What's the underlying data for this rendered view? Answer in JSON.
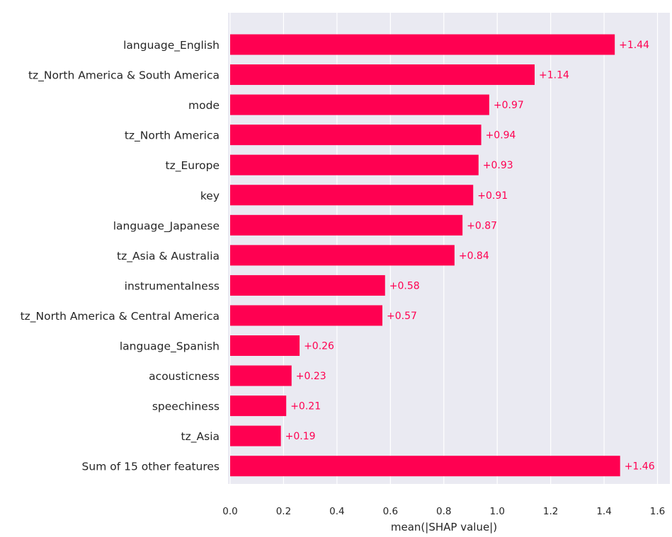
{
  "chart_data": {
    "type": "bar",
    "orientation": "horizontal",
    "title": "",
    "xlabel": "mean(|SHAP value|)",
    "ylabel": "",
    "xlim": [
      0,
      1.6
    ],
    "xticks": [
      0.0,
      0.2,
      0.4,
      0.6,
      0.8,
      1.0,
      1.2,
      1.4,
      1.6
    ],
    "xtick_labels": [
      "0.0",
      "0.2",
      "0.4",
      "0.6",
      "0.8",
      "1.0",
      "1.2",
      "1.4",
      "1.6"
    ],
    "grid": true,
    "bar_color": "#ff0051",
    "background_color": "#eaeaf2",
    "categories": [
      "language_English",
      "tz_North America & South America",
      "mode",
      "tz_North America",
      "tz_Europe",
      "key",
      "language_Japanese",
      "tz_Asia & Australia",
      "instrumentalness",
      "tz_North America & Central America",
      "language_Spanish",
      "acousticness",
      "speechiness",
      "tz_Asia",
      "Sum of 15 other features"
    ],
    "values": [
      1.44,
      1.14,
      0.97,
      0.94,
      0.93,
      0.91,
      0.87,
      0.84,
      0.58,
      0.57,
      0.26,
      0.23,
      0.21,
      0.19,
      1.46
    ],
    "value_labels": [
      "+1.44",
      "+1.14",
      "+0.97",
      "+0.94",
      "+0.93",
      "+0.91",
      "+0.87",
      "+0.84",
      "+0.58",
      "+0.57",
      "+0.26",
      "+0.23",
      "+0.21",
      "+0.19",
      "+1.46"
    ]
  }
}
